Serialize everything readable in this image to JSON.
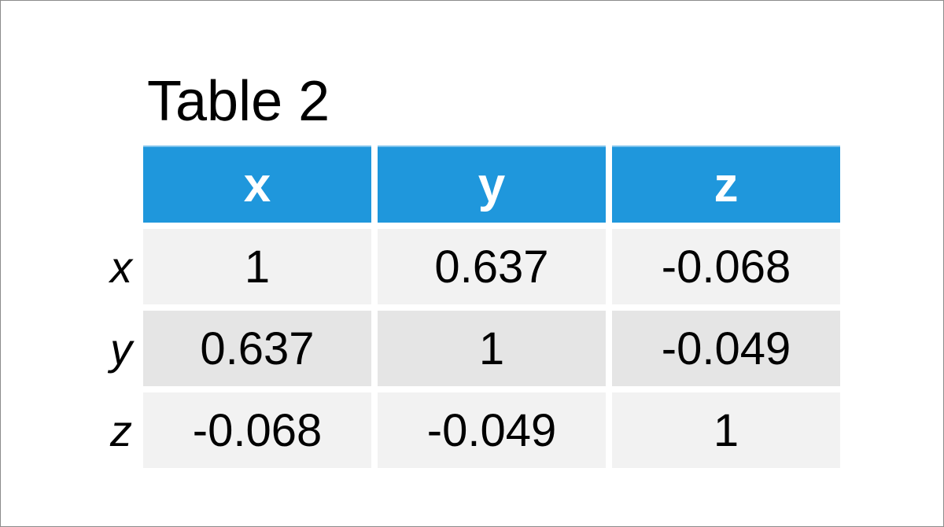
{
  "chart_data": {
    "type": "table",
    "title": "Table 2",
    "columns": [
      "x",
      "y",
      "z"
    ],
    "rows": [
      {
        "label": "x",
        "values": [
          "1",
          "0.637",
          "-0.068"
        ]
      },
      {
        "label": "y",
        "values": [
          "0.637",
          "1",
          "-0.049"
        ]
      },
      {
        "label": "z",
        "values": [
          "-0.068",
          "-0.049",
          "1"
        ]
      }
    ],
    "header_color": "#1f97dc",
    "row_colors": [
      "#f2f2f2",
      "#e5e5e5",
      "#f2f2f2"
    ]
  }
}
